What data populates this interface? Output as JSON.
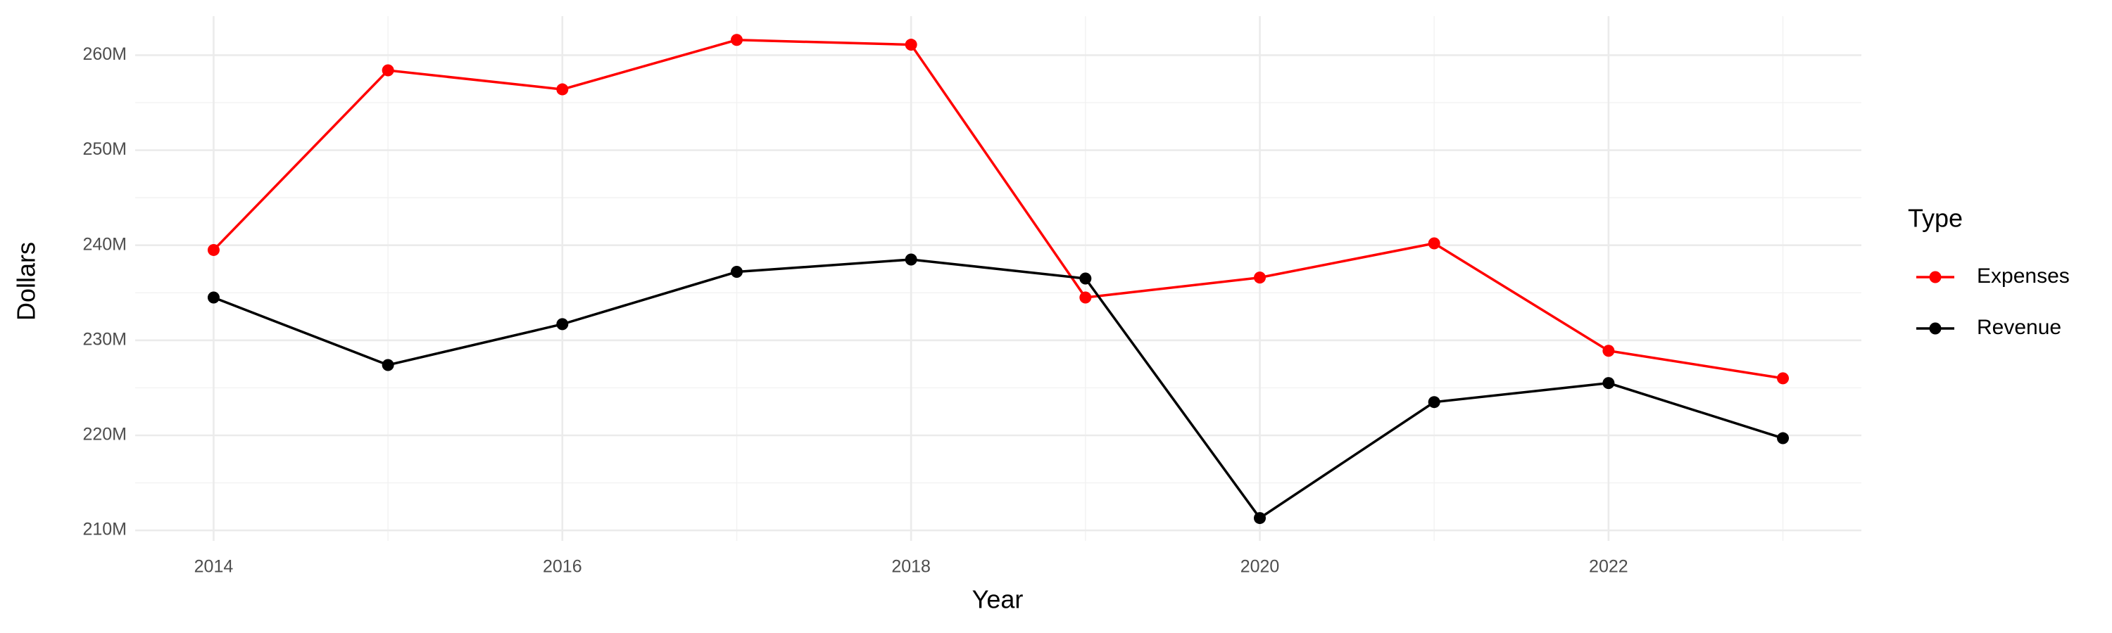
{
  "chart_data": {
    "type": "line",
    "x_label": "Year",
    "y_label": "Dollars",
    "legend_title": "Type",
    "x": [
      2014,
      2015,
      2016,
      2017,
      2018,
      2019,
      2020,
      2021,
      2022,
      2023
    ],
    "series": [
      {
        "name": "Expenses",
        "color": "#ff0000",
        "values": [
          239500000,
          258400000,
          256400000,
          261600000,
          261100000,
          234500000,
          236600000,
          240200000,
          228900000,
          226000000
        ]
      },
      {
        "name": "Revenue",
        "color": "#000000",
        "values": [
          234500000,
          227400000,
          231700000,
          237200000,
          238500000,
          236500000,
          211300000,
          223500000,
          225500000,
          219700000
        ]
      }
    ],
    "xlim": [
      2013.55,
      2023.45
    ],
    "xticks": [
      2014,
      2016,
      2018,
      2020,
      2022
    ],
    "ylim": [
      208900000,
      264100000
    ],
    "yticks": [
      {
        "value": 210000000,
        "label": "210M"
      },
      {
        "value": 220000000,
        "label": "220M"
      },
      {
        "value": 230000000,
        "label": "230M"
      },
      {
        "value": 240000000,
        "label": "240M"
      },
      {
        "value": 250000000,
        "label": "250M"
      },
      {
        "value": 260000000,
        "label": "260M"
      }
    ],
    "grid": true,
    "legend": "right"
  }
}
